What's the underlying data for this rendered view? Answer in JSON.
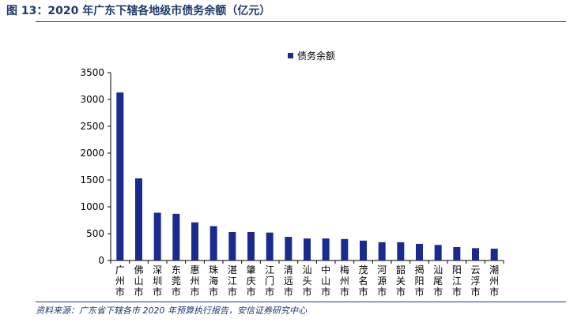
{
  "figure": {
    "title": "图 13：2020 年广东下辖各地级市债务余额（亿元）",
    "source": "资料来源：广东省下辖各市 2020 年预算执行报告，安信证券研究中心"
  },
  "colors": {
    "bar": "#1a2a8f",
    "title": "#1f3a6e",
    "axis": "#000000"
  },
  "chart_data": {
    "type": "bar",
    "title": "",
    "xlabel": "",
    "ylabel": "",
    "ylim": [
      0,
      3500
    ],
    "yticks": [
      0,
      500,
      1000,
      1500,
      2000,
      2500,
      3000,
      3500
    ],
    "grid": false,
    "legend_position": "top-center",
    "categories": [
      "广州市",
      "佛山市",
      "深圳市",
      "东莞市",
      "惠州市",
      "珠海市",
      "湛江市",
      "肇庆市",
      "江门市",
      "清远市",
      "汕头市",
      "中山市",
      "梅州市",
      "茂名市",
      "河源市",
      "韶关市",
      "揭阳市",
      "汕尾市",
      "阳江市",
      "云浮市",
      "潮州市"
    ],
    "series": [
      {
        "name": "债务余额",
        "values": [
          3130,
          1530,
          890,
          870,
          710,
          640,
          530,
          530,
          520,
          440,
          410,
          410,
          400,
          370,
          340,
          340,
          310,
          290,
          250,
          230,
          220
        ]
      }
    ]
  }
}
